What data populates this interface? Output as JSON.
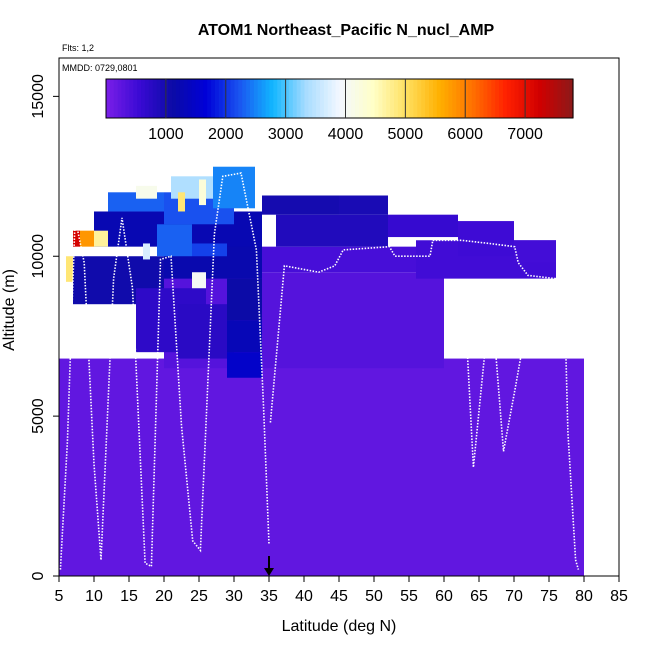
{
  "chart_data": {
    "type": "heatmap",
    "title": "ATOM1 Northeast_Pacific N_nucl_AMP",
    "flights_note": "Flts: 1,2",
    "dates_note": "MMDD: 0729,0801",
    "xlabel": "Latitude (deg N)",
    "ylabel": "Altitude (m)",
    "xlim": [
      5,
      85
    ],
    "ylim": [
      0,
      16200
    ],
    "xticks": [
      "5",
      "10",
      "15",
      "20",
      "25",
      "30",
      "35",
      "40",
      "45",
      "50",
      "55",
      "60",
      "65",
      "70",
      "75",
      "80",
      "85"
    ],
    "yticks": [
      "0",
      "5000",
      "10000",
      "15000"
    ],
    "colorbar": {
      "range": [
        0,
        7800
      ],
      "ticks": [
        "1000",
        "2000",
        "3000",
        "4000",
        "5000",
        "6000",
        "7000"
      ],
      "colors": [
        "#7b1fe8",
        "#3a0ad4",
        "#0b0ba6",
        "#0000d8",
        "#1a55f0",
        "#12b6ff",
        "#a8dcff",
        "#f3f8ff",
        "#ffffc8",
        "#ffe060",
        "#ffb000",
        "#ff7000",
        "#ff2000",
        "#d00000",
        "#8c1a1a"
      ]
    },
    "marker": {
      "latitude": 35,
      "symbol": "arrow"
    },
    "cells": [
      {
        "lat": 5,
        "lat_end": 80,
        "alt": 0,
        "alt_end": 6800,
        "value": 220
      },
      {
        "lat": 20,
        "lat_end": 60,
        "alt": 6500,
        "alt_end": 9500,
        "value": 330
      },
      {
        "lat": 7,
        "lat_end": 20,
        "alt": 8500,
        "alt_end": 10000,
        "value": 1050
      },
      {
        "lat": 16,
        "lat_end": 26,
        "alt": 7000,
        "alt_end": 9000,
        "value": 700
      },
      {
        "lat": 22,
        "lat_end": 30,
        "alt": 6800,
        "alt_end": 8500,
        "value": 750
      },
      {
        "lat": 29,
        "lat_end": 34,
        "alt": 6200,
        "alt_end": 7000,
        "value": 1500
      },
      {
        "lat": 29,
        "lat_end": 34,
        "alt": 7000,
        "alt_end": 8000,
        "value": 1300
      },
      {
        "lat": 29,
        "lat_end": 34,
        "alt": 8000,
        "alt_end": 9300,
        "value": 1100
      },
      {
        "lat": 20,
        "lat_end": 34,
        "alt": 9300,
        "alt_end": 10500,
        "value": 1200
      },
      {
        "lat": 34,
        "lat_end": 56,
        "alt": 9500,
        "alt_end": 10300,
        "value": 450
      },
      {
        "lat": 56,
        "lat_end": 76,
        "alt": 9300,
        "alt_end": 10500,
        "value": 500
      },
      {
        "lat": 36,
        "lat_end": 52,
        "alt": 10300,
        "alt_end": 11300,
        "value": 850
      },
      {
        "lat": 34,
        "lat_end": 45,
        "alt": 11300,
        "alt_end": 11900,
        "value": 1000
      },
      {
        "lat": 45,
        "lat_end": 52,
        "alt": 11300,
        "alt_end": 11900,
        "value": 950
      },
      {
        "lat": 52,
        "lat_end": 62,
        "alt": 10600,
        "alt_end": 11300,
        "value": 600
      },
      {
        "lat": 62,
        "lat_end": 70,
        "alt": 10000,
        "alt_end": 11100,
        "value": 520
      },
      {
        "lat": 70,
        "lat_end": 76,
        "alt": 9800,
        "alt_end": 10500,
        "value": 480
      },
      {
        "lat": 10,
        "lat_end": 34,
        "alt": 10300,
        "alt_end": 11400,
        "value": 1250
      },
      {
        "lat": 12,
        "lat_end": 20,
        "alt": 11400,
        "alt_end": 12000,
        "value": 2300
      },
      {
        "lat": 20,
        "lat_end": 30,
        "alt": 11000,
        "alt_end": 12000,
        "value": 2200
      },
      {
        "lat": 21,
        "lat_end": 27,
        "alt": 11800,
        "alt_end": 12500,
        "value": 3400
      },
      {
        "lat": 27,
        "lat_end": 33,
        "alt": 11500,
        "alt_end": 12800,
        "value": 2500
      },
      {
        "lat": 19,
        "lat_end": 24,
        "alt": 10000,
        "alt_end": 11000,
        "value": 2300
      },
      {
        "lat": 24,
        "lat_end": 29,
        "alt": 10000,
        "alt_end": 10400,
        "value": 2100
      },
      {
        "lat": 16,
        "lat_end": 19,
        "alt": 11800,
        "alt_end": 12200,
        "value": 4100
      },
      {
        "lat": 22,
        "lat_end": 23,
        "alt": 11400,
        "alt_end": 12000,
        "value": 4900
      },
      {
        "lat": 25,
        "lat_end": 26,
        "alt": 11600,
        "alt_end": 12400,
        "value": 4300
      },
      {
        "lat": 6,
        "lat_end": 7,
        "alt": 9200,
        "alt_end": 10000,
        "value": 4900
      },
      {
        "lat": 7,
        "lat_end": 8,
        "alt": 10300,
        "alt_end": 10800,
        "value": 7200
      },
      {
        "lat": 8,
        "lat_end": 10,
        "alt": 10300,
        "alt_end": 10800,
        "value": 5800
      },
      {
        "lat": 10,
        "lat_end": 12,
        "alt": 10300,
        "alt_end": 10800,
        "value": 4700
      },
      {
        "lat": 17,
        "lat_end": 18,
        "alt": 9900,
        "alt_end": 10400,
        "value": 3700
      },
      {
        "lat": 24,
        "lat_end": 26,
        "alt": 9000,
        "alt_end": 9500,
        "value": 4000
      }
    ],
    "flight_tracks": [
      {
        "lat": [
          5.2,
          6.2,
          7.3,
          8.6,
          10.0,
          11.0,
          12.8,
          14.0,
          15.5,
          17.3,
          18.2,
          19.5,
          21.0,
          22.5,
          24.1,
          25.2,
          27.2,
          28.4,
          31.0,
          33.2,
          34.2,
          35.0
        ],
        "alt": [
          200,
          4200,
          11200,
          9800,
          3500,
          500,
          9300,
          11200,
          9000,
          400,
          300,
          9900,
          10000,
          4700,
          1100,
          800,
          10700,
          12500,
          12600,
          10200,
          5400,
          1000
        ]
      },
      {
        "lat": [
          35.2,
          37.2,
          42.1,
          44.4,
          45.6,
          52.2,
          53.0,
          58.0,
          58.4,
          62.5,
          66.5,
          70.1,
          70.6,
          72.0,
          75.9,
          76.4,
          77.1,
          77.7,
          78.8,
          79.2
        ],
        "alt": [
          4800,
          9700,
          9500,
          9700,
          10200,
          10300,
          10000,
          10000,
          10500,
          10500,
          10400,
          10300,
          9800,
          9400,
          9300,
          7600,
          9600,
          4500,
          500,
          200
        ]
      },
      {
        "lat": [
          62.9,
          64.2,
          66.7,
          68.5,
          70.2,
          72.3,
          73.3
        ],
        "alt": [
          8800,
          3400,
          8900,
          3900,
          5900,
          8500,
          7500
        ]
      }
    ]
  }
}
